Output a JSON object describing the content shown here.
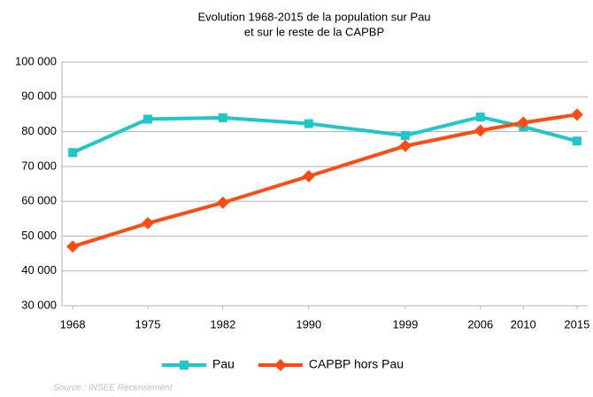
{
  "chart_data": {
    "type": "line",
    "title": [
      "Evolution 1968-2015 de la population sur Pau",
      "et sur le reste de la CAPBP"
    ],
    "x": [
      1968,
      1975,
      1982,
      1990,
      1999,
      2006,
      2010,
      2015
    ],
    "xlim": [
      1967,
      2016
    ],
    "xticks": [
      1968,
      1975,
      1982,
      1990,
      1999,
      2006,
      2010,
      2015
    ],
    "ylim": [
      30000,
      100000
    ],
    "yticks": [
      {
        "value": 30000,
        "label": "30 000"
      },
      {
        "value": 40000,
        "label": "40 000"
      },
      {
        "value": 50000,
        "label": "50 000"
      },
      {
        "value": 60000,
        "label": "60 000"
      },
      {
        "value": 70000,
        "label": "70 000"
      },
      {
        "value": 80000,
        "label": "80 000"
      },
      {
        "value": 90000,
        "label": "90 000"
      },
      {
        "value": 100000,
        "label": "100 000"
      }
    ],
    "grid": true,
    "legend": "bottom",
    "series": [
      {
        "name": "Pau",
        "color": "#1ec8c8",
        "marker": "square",
        "values": [
          74000,
          83600,
          84000,
          82300,
          78900,
          84200,
          81400,
          77300
        ]
      },
      {
        "name": "CAPBP hors Pau",
        "color": "#ff4a12",
        "marker": "diamond",
        "values": [
          47000,
          53700,
          59600,
          67200,
          75900,
          80300,
          82600,
          84900
        ]
      }
    ],
    "source": "Source : INSEE Recensement"
  }
}
